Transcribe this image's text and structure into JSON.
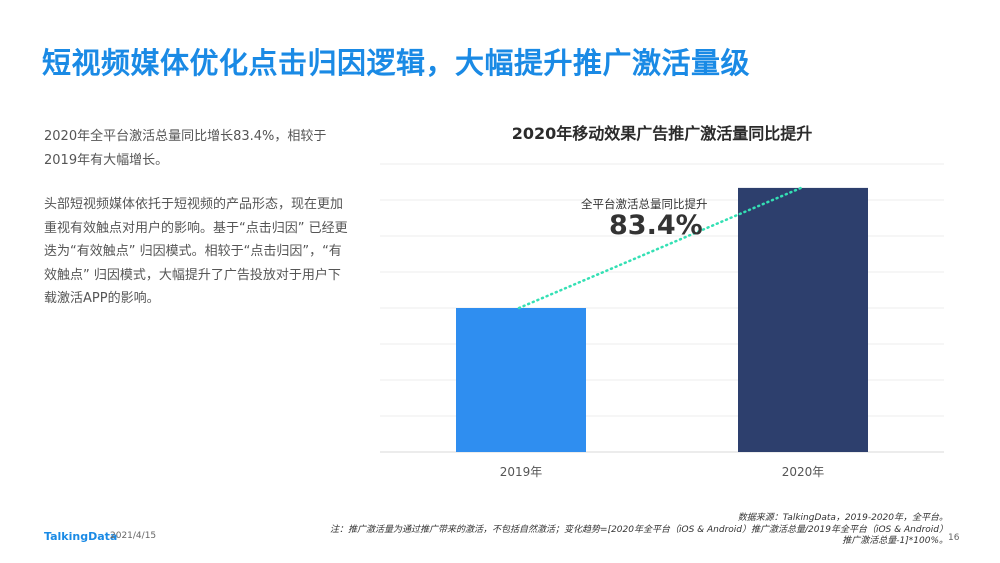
{
  "page": {
    "title": "短视频媒体优化点击归因逻辑，大幅提升推广激活量级",
    "paragraph1": "2020年全平台激活总量同比增长83.4%，相较于2019年有大幅增长。",
    "paragraph2": "头部短视频媒体依托于短视频的产品形态，现在更加重视有效触点对用户的影响。基于“点击归因” 已经更迭为“有效触点” 归因模式。相较于“点击归因”，“有效触点” 归因模式，大幅提升了广告投放对于用户下载激活APP的影响。"
  },
  "chart_data": {
    "type": "bar",
    "title": "2020年移动效果广告推广激活量同比提升",
    "categories": [
      "2019年",
      "2020年"
    ],
    "values": [
      100,
      183.4
    ],
    "ylim": [
      0,
      200
    ],
    "grid": true,
    "bar_colors": [
      "#2f8ef0",
      "#2d3f6d"
    ],
    "trend_line": {
      "color": "#34e0b4",
      "style": "dotted"
    },
    "annotation": {
      "label": "全平台激活总量同比提升",
      "value": "83.4%"
    }
  },
  "footer": {
    "logo": "TalkingData",
    "date": "2021/4/15",
    "source": "数据来源：TalkingData，2019-2020年，全平台。",
    "note": "注：推广激活量为通过推广带来的激活，不包括自然激活；变化趋势=[2020年全平台（iOS & Android）推广激活总量/2019年全平台（iOS & Android）推广激活总量-1]*100%。",
    "page_number": "16"
  },
  "colors": {
    "accent": "#1a8ae5",
    "bar_2019": "#2f8ef0",
    "bar_2020": "#2d3f6d",
    "trend": "#34e0b4"
  }
}
